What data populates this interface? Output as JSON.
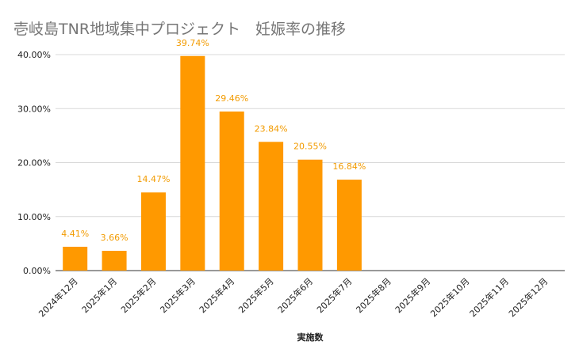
{
  "chart_data": {
    "type": "bar",
    "title": "壱岐島TNR地域集中プロジェクト　妊娠率の推移",
    "xlabel": "実施数",
    "ylabel": "",
    "categories": [
      "2024年12月",
      "2025年1月",
      "2025年2月",
      "2025年3月",
      "2025年4月",
      "2025年5月",
      "2025年6月",
      "2025年7月",
      "2025年8月",
      "2025年9月",
      "2025年10月",
      "2025年11月",
      "2025年12月"
    ],
    "values": [
      4.41,
      3.66,
      14.47,
      39.74,
      29.46,
      23.84,
      20.55,
      16.84,
      null,
      null,
      null,
      null,
      null
    ],
    "data_labels": [
      "4.41%",
      "3.66%",
      "14.47%",
      "39.74%",
      "29.46%",
      "23.84%",
      "20.55%",
      "16.84%",
      "",
      "",
      "",
      "",
      ""
    ],
    "ylim": [
      0,
      40
    ],
    "yticks": [
      0,
      10,
      20,
      30,
      40
    ],
    "ytick_labels": [
      "0.00%",
      "10.00%",
      "20.00%",
      "30.00%",
      "40.00%"
    ],
    "grid": true,
    "legend": "none",
    "colors": {
      "bar": "#ff9900",
      "label": "#f29b00",
      "grid": "#d9d9d9",
      "title": "#757575"
    }
  }
}
